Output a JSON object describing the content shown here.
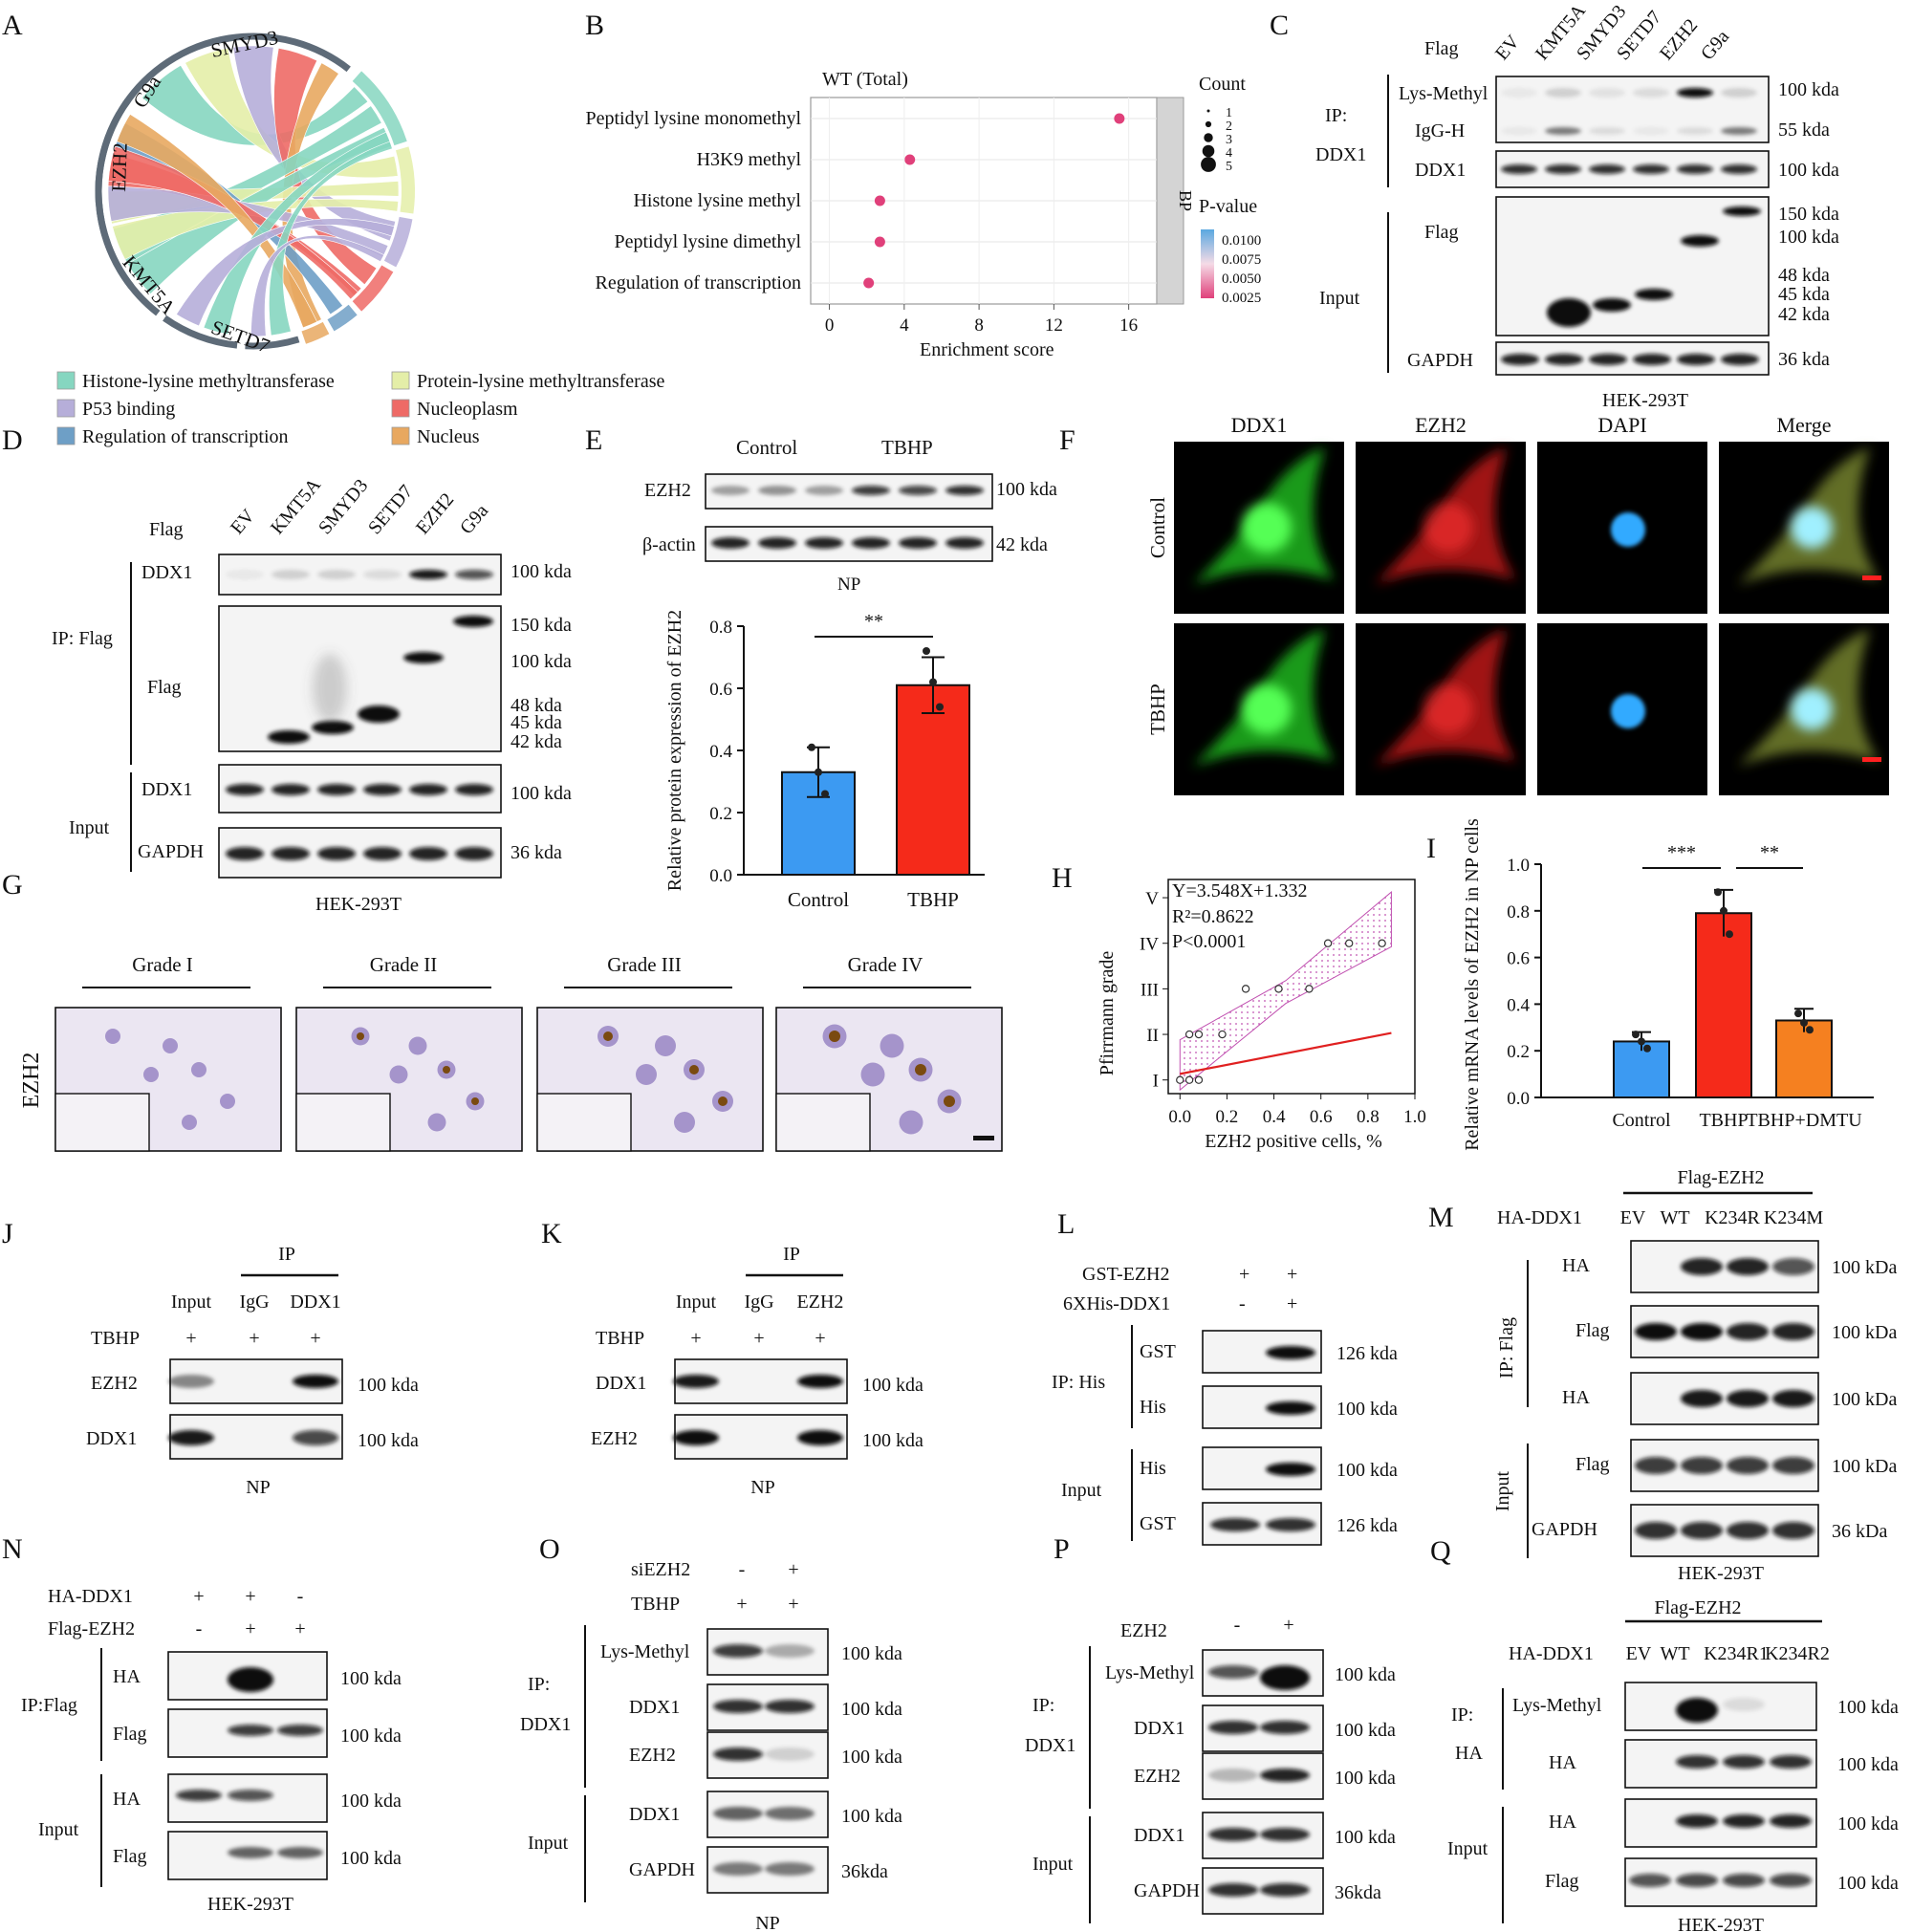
{
  "panelA": {
    "letter": "A",
    "genes": [
      "SMYD3",
      "G9a",
      "EZH2",
      "KMT5A",
      "SETD7"
    ],
    "legend": [
      {
        "label": "Histone-lysine methyltransferase",
        "color": "#86d6c0"
      },
      {
        "label": "Protein-lysine methyltransferase",
        "color": "#e4eea8"
      },
      {
        "label": "P53 binding",
        "color": "#b6aed9"
      },
      {
        "label": "Nucleoplasm",
        "color": "#ee6a66"
      },
      {
        "label": "Regulation of transcription",
        "color": "#6e9fc6"
      },
      {
        "label": "Nucleus",
        "color": "#e8a860"
      }
    ]
  },
  "panelB": {
    "letter": "B",
    "chart_data": {
      "type": "scatter",
      "title": "WT (Total)",
      "xlabel": "Enrichment score",
      "xlim": [
        -1,
        17.5
      ],
      "xticks": [
        0,
        4,
        8,
        12,
        16
      ],
      "facet": "BP",
      "categories": [
        "Peptidyl lysine monomethyl",
        "H3K9 methyl",
        "Histone lysine methyl",
        "Peptidyl lysine dimethyl",
        "Regulation of transcription"
      ],
      "values": [
        15.5,
        4.3,
        2.7,
        2.7,
        2.1
      ],
      "count": [
        1,
        1,
        1,
        1,
        1
      ],
      "size_legend_title": "Count",
      "size_legend": [
        "1",
        "2",
        "3",
        "4",
        "5"
      ],
      "color_legend_title": "P-value",
      "color_legend": [
        "0.0100",
        "0.0075",
        "0.0050",
        "0.0025"
      ],
      "colors": {
        "low": "#e0407a",
        "high": "#5aa8e0"
      }
    }
  },
  "panelC": {
    "letter": "C",
    "flag": "Flag",
    "lanes": [
      "EV",
      "KMT5A",
      "SMYD3",
      "SETD7",
      "EZH2",
      "G9a"
    ],
    "ip": "IP:",
    "ip2": "DDX1",
    "input": "Input",
    "rows": [
      "Lys-Methyl",
      "IgG-H",
      "DDX1",
      "Flag",
      "GAPDH"
    ],
    "kda": [
      "100 kda",
      "55 kda",
      "100 kda",
      "150 kda",
      "100 kda",
      "48 kda",
      "45 kda",
      "42 kda",
      "36 kda"
    ],
    "cell": "HEK-293T"
  },
  "panelD": {
    "letter": "D",
    "flag": "Flag",
    "lanes": [
      "EV",
      "KMT5A",
      "SMYD3",
      "SETD7",
      "EZH2",
      "G9a"
    ],
    "ip": "IP: Flag",
    "input": "Input",
    "rows": [
      "DDX1",
      "Flag",
      "DDX1",
      "GAPDH"
    ],
    "kda": [
      "100 kda",
      "150 kda",
      "100 kda",
      "48 kda",
      "45 kda",
      "42 kda",
      "100 kda",
      "36 kda"
    ],
    "cell": "HEK-293T"
  },
  "panelE": {
    "letter": "E",
    "groups": [
      "Control",
      "TBHP"
    ],
    "rows": [
      "EZH2",
      "β-actin"
    ],
    "kda": [
      "100 kda",
      "42 kda"
    ],
    "cell": "NP",
    "chart_data": {
      "type": "bar",
      "categories": [
        "Control",
        "TBHP"
      ],
      "values": [
        0.33,
        0.61
      ],
      "errors": [
        0.08,
        0.09
      ],
      "points": [
        [
          0.41,
          0.33,
          0.26
        ],
        [
          0.72,
          0.62,
          0.54
        ]
      ],
      "ylabel": "Relative protein expression of EZH2",
      "ylim": [
        0,
        0.8
      ],
      "yticks": [
        "0.0",
        "0.2",
        "0.4",
        "0.6",
        "0.8"
      ],
      "significance": "**",
      "colors": [
        "#3c9af2",
        "#f52a1a"
      ]
    }
  },
  "panelF": {
    "letter": "F",
    "channels": [
      "DDX1",
      "EZH2",
      "DAPI",
      "Merge"
    ],
    "rows": [
      "Control",
      "TBHP"
    ],
    "channel_colors": [
      "#2ee62e",
      "#e82020",
      "#1a1ae6"
    ]
  },
  "panelG": {
    "letter": "G",
    "grades": [
      "Grade I",
      "Grade II",
      "Grade III",
      "Grade IV"
    ],
    "row": "EZH2"
  },
  "panelH": {
    "letter": "H",
    "chart_data": {
      "type": "scatter",
      "equation": "Y=3.548X+1.332",
      "r2": "R²=0.8622",
      "p": "P<0.0001",
      "xlabel": "EZH2 positive cells, %",
      "ylabel": "Pfirrmann  grade",
      "xlim": [
        -0.05,
        1.0
      ],
      "ylim": [
        0.7,
        5.4
      ],
      "xticks": [
        "0.0",
        "0.2",
        "0.4",
        "0.6",
        "0.8",
        "1.0"
      ],
      "yticks": [
        "I",
        "II",
        "III",
        "IV",
        "V"
      ],
      "x": [
        0.0,
        0.04,
        0.08,
        0.04,
        0.08,
        0.18,
        0.28,
        0.42,
        0.55,
        0.63,
        0.72,
        0.86
      ],
      "y": [
        1,
        1,
        1,
        2,
        2,
        2,
        3,
        3,
        3,
        4,
        4,
        4
      ],
      "fit": {
        "slope": 3.548,
        "intercept": 1.332
      }
    }
  },
  "panelI": {
    "letter": "I",
    "chart_data": {
      "type": "bar",
      "categories": [
        "Control",
        "TBHP",
        "TBHP+DMTU"
      ],
      "values": [
        0.24,
        0.79,
        0.33
      ],
      "errors": [
        0.04,
        0.1,
        0.05
      ],
      "points": [
        [
          0.27,
          0.24,
          0.21
        ],
        [
          0.88,
          0.8,
          0.7
        ],
        [
          0.36,
          0.32,
          0.29
        ]
      ],
      "ylabel": "Relative mRNA levels of EZH2 in NP cells",
      "ylim": [
        0,
        1.0
      ],
      "yticks": [
        "0.0",
        "0.2",
        "0.4",
        "0.6",
        "0.8",
        "1.0"
      ],
      "significance": [
        "***",
        "**"
      ],
      "colors": [
        "#3c9af2",
        "#f52a1a",
        "#f58020"
      ]
    }
  },
  "panelJ": {
    "letter": "J",
    "ip": "IP",
    "lanes": [
      "Input",
      "IgG",
      "DDX1"
    ],
    "tbhp": "TBHP",
    "plus": "+",
    "rows": [
      "EZH2",
      "DDX1"
    ],
    "kda": [
      "100 kda",
      "100 kda"
    ],
    "cell": "NP"
  },
  "panelK": {
    "letter": "K",
    "ip": "IP",
    "lanes": [
      "Input",
      "IgG",
      "EZH2"
    ],
    "tbhp": "TBHP",
    "plus": "+",
    "rows": [
      "DDX1",
      "EZH2"
    ],
    "kda": [
      "100 kda",
      "100 kda"
    ],
    "cell": "NP"
  },
  "panelL": {
    "letter": "L",
    "cond1": "GST-EZH2",
    "cond2": "6XHis-DDX1",
    "plus": "+",
    "minus": "-",
    "ip": "IP: His",
    "input": "Input",
    "rows": [
      "GST",
      "His",
      "His",
      "GST"
    ],
    "kda": [
      "126 kda",
      "100 kda",
      "100 kda",
      "126 kda"
    ]
  },
  "panelM": {
    "letter": "M",
    "top": "Flag-EZH2",
    "ha": "HA-DDX1",
    "lanes": [
      "EV",
      "WT",
      "K234R",
      "K234M"
    ],
    "ip": "IP: Flag",
    "input": "Input",
    "rows": [
      "HA",
      "Flag",
      "HA",
      "Flag",
      "GAPDH"
    ],
    "kda": [
      "100 kDa",
      "100 kDa",
      "100 kDa",
      "100 kDa",
      "36 kDa"
    ],
    "cell": "HEK-293T"
  },
  "panelN": {
    "letter": "N",
    "cond1": "HA-DDX1",
    "cond2": "Flag-EZH2",
    "plus": "+",
    "minus": "-",
    "ip": "IP:Flag",
    "input": "Input",
    "rows": [
      "HA",
      "Flag",
      "HA",
      "Flag"
    ],
    "kda": [
      "100 kda",
      "100 kda",
      "100 kda",
      "100 kda"
    ],
    "cell": "HEK-293T"
  },
  "panelO": {
    "letter": "O",
    "cond1": "siEZH2",
    "cond2": "TBHP",
    "plus": "+",
    "minus": "-",
    "ip": "IP:",
    "ip2": "DDX1",
    "input": "Input",
    "rows": [
      "Lys-Methyl",
      "DDX1",
      "EZH2",
      "DDX1",
      "GAPDH"
    ],
    "kda": [
      "100 kda",
      "100 kda",
      "100 kda",
      "100 kda",
      "36kda"
    ],
    "cell": "NP"
  },
  "panelP": {
    "letter": "P",
    "cond1": "EZH2",
    "plus": "+",
    "minus": "-",
    "ip": "IP:",
    "ip2": "DDX1",
    "input": "Input",
    "rows": [
      "Lys-Methyl",
      "DDX1",
      "EZH2",
      "DDX1",
      "GAPDH"
    ],
    "kda": [
      "100 kda",
      "100 kda",
      "100 kda",
      "100 kda",
      "36kda"
    ],
    "cell": "NP"
  },
  "panelQ": {
    "letter": "Q",
    "top": "Flag-EZH2",
    "ha": "HA-DDX1",
    "lanes": [
      "EV",
      "WT",
      "K234R1",
      "K234R2"
    ],
    "ip": "IP:",
    "ip2": "HA",
    "input": "Input",
    "rows": [
      "Lys-Methyl",
      "HA",
      "HA",
      "Flag"
    ],
    "kda": [
      "100 kda",
      "100 kda",
      "100 kda",
      "100 kda"
    ],
    "cell": "HEK-293T"
  }
}
